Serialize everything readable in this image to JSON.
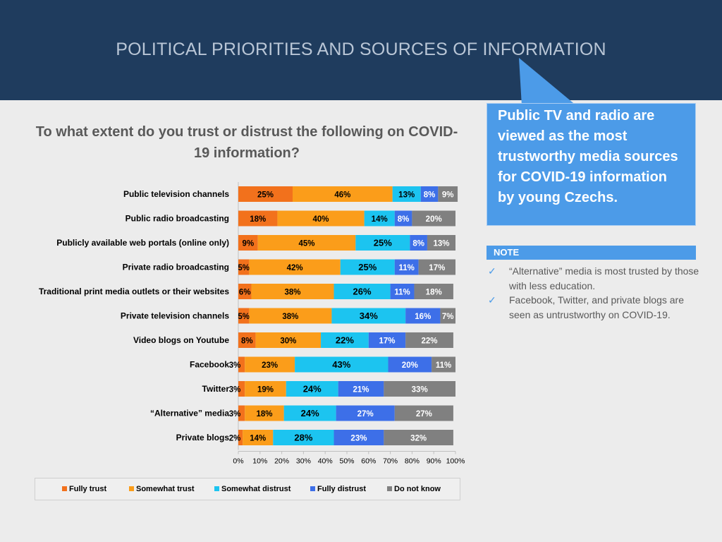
{
  "header": {
    "title": "POLITICAL PRIORITIES AND SOURCES OF INFORMATION"
  },
  "callout": {
    "text": "Public TV and radio are viewed as the most trustworthy media sources for COVID-19 information by young Czechs."
  },
  "note": {
    "label": "NOTE",
    "items": [
      "“Alternative” media is most trusted by those with less education.",
      "Facebook, Twitter, and private blogs are seen as untrustworthy on COVID-19."
    ]
  },
  "colors": {
    "header_bg": "#1f3c5e",
    "callout_bg": "#4c9be8",
    "fully_trust": "#f2711c",
    "somewhat_trust": "#fb9d1a",
    "somewhat_distrust": "#1cc4f0",
    "fully_distrust": "#3d6fe8",
    "do_not_know": "#808080"
  },
  "chart_data": {
    "type": "bar",
    "orientation": "horizontal",
    "stacked": true,
    "title": "To what extent do you trust or distrust the following on COVID-19 information?",
    "categories": [
      "Public television channels",
      "Public radio broadcasting",
      "Publicly available web portals (online only)",
      "Private radio broadcasting",
      "Traditional print media outlets or their websites",
      "Private television channels",
      "Video blogs on Youtube",
      "Facebook",
      "Twitter",
      "“Alternative” media",
      "Private blogs"
    ],
    "series": [
      {
        "name": "Fully trust",
        "values": [
          25,
          18,
          9,
          5,
          6,
          5,
          8,
          3,
          3,
          3,
          2
        ]
      },
      {
        "name": "Somewhat trust",
        "values": [
          46,
          40,
          45,
          42,
          38,
          38,
          30,
          23,
          19,
          18,
          14
        ]
      },
      {
        "name": "Somewhat distrust",
        "values": [
          13,
          14,
          25,
          25,
          26,
          34,
          22,
          43,
          24,
          24,
          28
        ]
      },
      {
        "name": "Fully distrust",
        "values": [
          8,
          8,
          8,
          11,
          11,
          16,
          17,
          20,
          21,
          27,
          23
        ]
      },
      {
        "name": "Do not know",
        "values": [
          9,
          20,
          13,
          17,
          18,
          7,
          22,
          11,
          33,
          27,
          32
        ]
      }
    ],
    "xticks": [
      "0%",
      "10%",
      "20%",
      "30%",
      "40%",
      "50%",
      "60%",
      "70%",
      "80%",
      "90%",
      "100%"
    ],
    "xlim": [
      0,
      100
    ],
    "legend_position": "bottom"
  }
}
